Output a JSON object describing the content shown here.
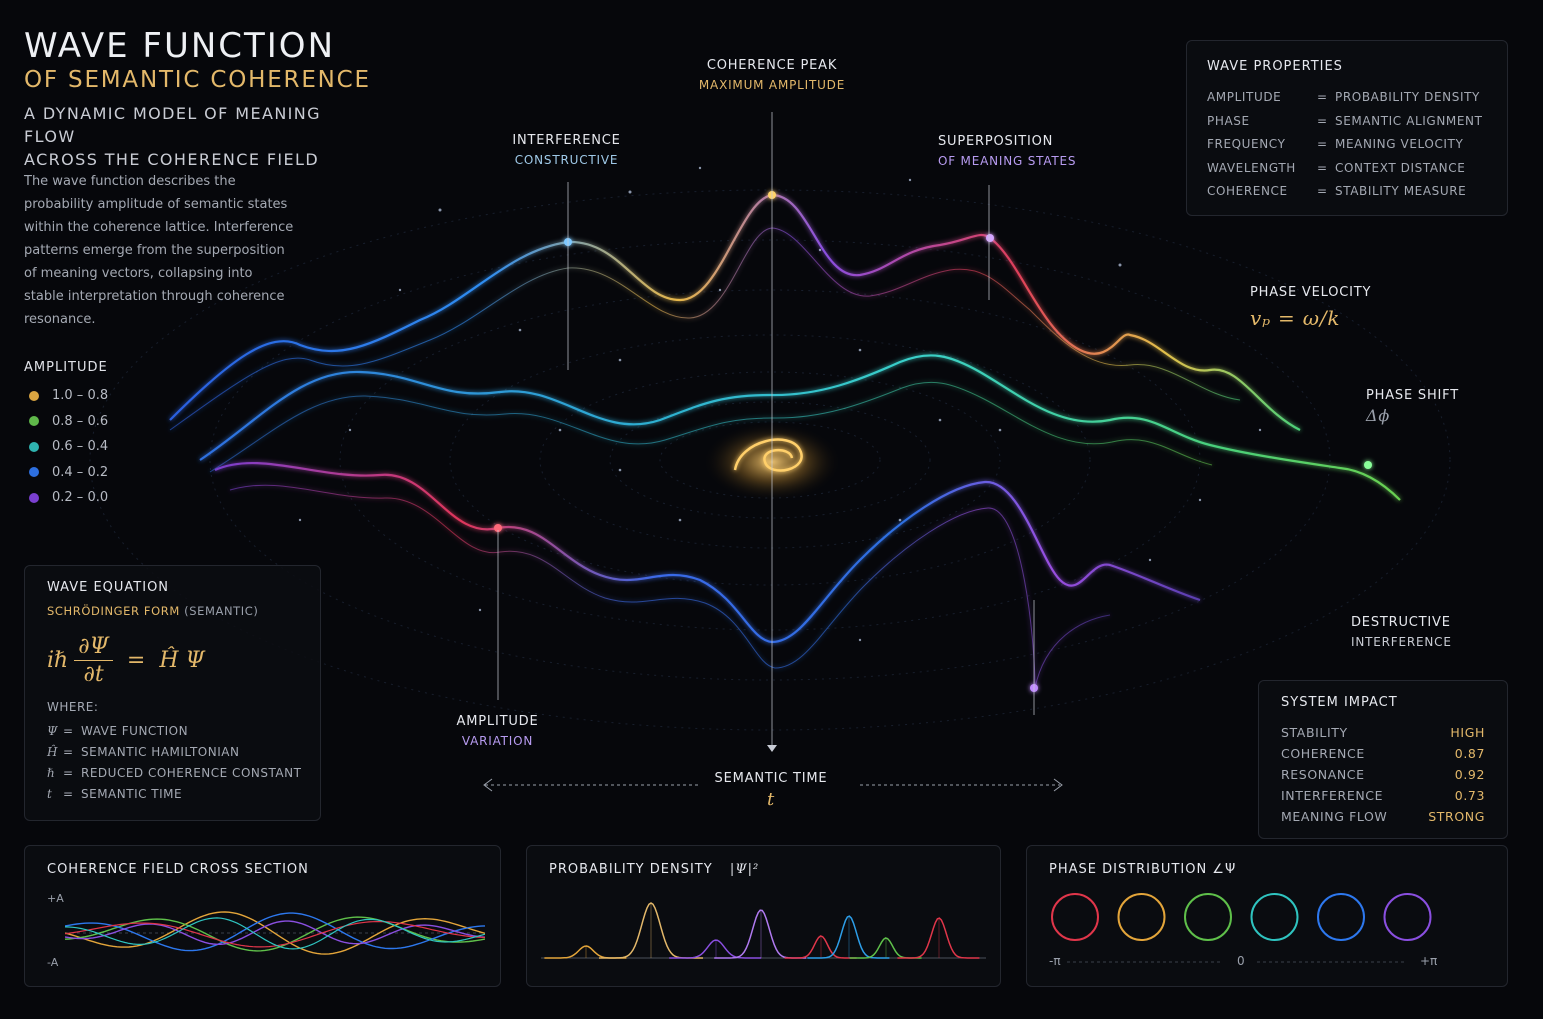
{
  "header": {
    "title_line1": "WAVE FUNCTION",
    "title_line2": "OF SEMANTIC COHERENCE",
    "subtitle_line1": "A DYNAMIC MODEL OF MEANING FLOW",
    "subtitle_line2": "ACROSS THE COHERENCE FIELD",
    "description": "The wave function describes the probability amplitude of semantic states within the coherence lattice. Interference patterns emerge from the superposition of meaning vectors, collapsing into stable interpretation through coherence resonance."
  },
  "amplitude_legend": {
    "title": "AMPLITUDE",
    "items": [
      {
        "label": "1.0 – 0.8",
        "color": "#d9a441"
      },
      {
        "label": "0.8 – 0.6",
        "color": "#5fb84a"
      },
      {
        "label": "0.6 – 0.4",
        "color": "#2fb3b0"
      },
      {
        "label": "0.4 – 0.2",
        "color": "#2d6fe0"
      },
      {
        "label": "0.2 – 0.0",
        "color": "#7a3fd0"
      }
    ]
  },
  "annotations": {
    "coherence_peak": {
      "title": "COHERENCE PEAK",
      "sub": "MAXIMUM AMPLITUDE"
    },
    "interference": {
      "title": "INTERFERENCE",
      "sub": "CONSTRUCTIVE"
    },
    "superposition": {
      "title": "SUPERPOSITION",
      "sub": "OF MEANING STATES"
    },
    "phase_velocity": {
      "title": "PHASE VELOCITY",
      "formula": "vₚ = ω/k"
    },
    "phase_shift": {
      "title": "PHASE SHIFT",
      "formula": "Δϕ"
    },
    "destructive": {
      "title": "DESTRUCTIVE",
      "sub": "INTERFERENCE"
    },
    "amplitude_var": {
      "title": "AMPLITUDE",
      "sub": "VARIATION"
    },
    "semantic_time": {
      "title": "SEMANTIC TIME",
      "symbol": "t"
    }
  },
  "wave_properties": {
    "title": "WAVE PROPERTIES",
    "rows": [
      {
        "key": "AMPLITUDE",
        "eq": "=",
        "value": "PROBABILITY DENSITY"
      },
      {
        "key": "PHASE",
        "eq": "=",
        "value": "SEMANTIC ALIGNMENT"
      },
      {
        "key": "FREQUENCY",
        "eq": "=",
        "value": "MEANING VELOCITY"
      },
      {
        "key": "WAVELENGTH",
        "eq": "=",
        "value": "CONTEXT DISTANCE"
      },
      {
        "key": "COHERENCE",
        "eq": "=",
        "value": "STABILITY MEASURE"
      }
    ]
  },
  "wave_equation": {
    "title": "WAVE EQUATION",
    "form_gold": "SCHRÖDINGER FORM",
    "form_rest": "(SEMANTIC)",
    "lhs_i": "iℏ",
    "numerator": "∂Ψ",
    "denominator": "∂t",
    "equals": "=",
    "rhs": "Ĥ Ψ",
    "where": "WHERE:",
    "defs": [
      {
        "sym": "Ψ",
        "eq": "=",
        "text": "WAVE FUNCTION"
      },
      {
        "sym": "Ĥ",
        "eq": "=",
        "text": "SEMANTIC HAMILTONIAN"
      },
      {
        "sym": "ℏ",
        "eq": "=",
        "text": "REDUCED COHERENCE CONSTANT"
      },
      {
        "sym": "t",
        "eq": "=",
        "text": "SEMANTIC TIME"
      }
    ]
  },
  "system_impact": {
    "title": "SYSTEM IMPACT",
    "rows": [
      {
        "key": "STABILITY",
        "value": "HIGH"
      },
      {
        "key": "COHERENCE",
        "value": "0.87"
      },
      {
        "key": "RESONANCE",
        "value": "0.92"
      },
      {
        "key": "INTERFERENCE",
        "value": "0.73"
      },
      {
        "key": "MEANING FLOW",
        "value": "STRONG"
      }
    ]
  },
  "cross_section": {
    "title": "COHERENCE FIELD CROSS SECTION",
    "top_label": "+A",
    "bottom_label": "-A"
  },
  "probability_density": {
    "title": "PROBABILITY DENSITY",
    "formula": "|Ψ|²"
  },
  "phase_distribution": {
    "title": "PHASE DISTRIBUTION ∠Ψ",
    "left": "-π",
    "center": "0",
    "right": "+π",
    "rings": [
      "#e0364a",
      "#e3a53a",
      "#5fc04a",
      "#2fc4c0",
      "#2d78ee",
      "#8a4fe0"
    ]
  },
  "colors": {
    "gold": "#e3b86a",
    "violet": "#b79bf0",
    "background": "#06070b"
  }
}
